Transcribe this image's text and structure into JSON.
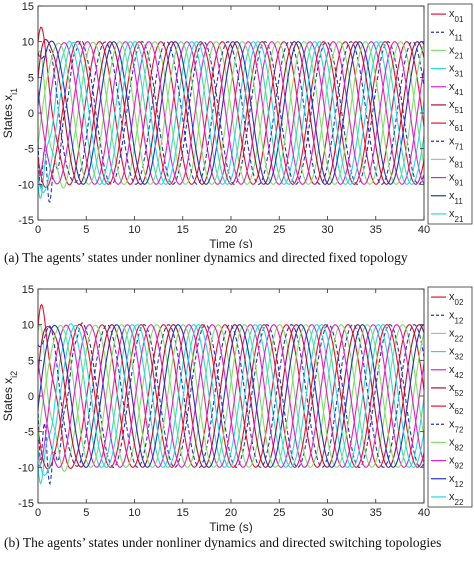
{
  "chart_data": [
    {
      "type": "line",
      "id": "a",
      "xlabel": "Time (s)",
      "ylabel_main": "States x",
      "ylabel_sub": "i1",
      "xlim": [
        0,
        40
      ],
      "ylim": [
        -15,
        15
      ],
      "xticks": [
        0,
        5,
        10,
        15,
        20,
        25,
        30,
        35,
        40
      ],
      "yticks": [
        -15,
        -10,
        -5,
        0,
        5,
        10,
        15
      ],
      "grid": false,
      "legend_position": "right",
      "caption": "(a) The agents’ states under nonliner dynamics and directed fixed topology",
      "series": [
        {
          "main": "x",
          "sub": "01",
          "color": "#e8112d",
          "dash": false,
          "amp": 10,
          "freq": 0.157,
          "phase": 1.57,
          "dev": [
            4.0,
            3.0,
            0.8
          ]
        },
        {
          "main": "x",
          "sub": "11",
          "color": "#2233bb",
          "dash": true,
          "amp": 10,
          "freq": 0.157,
          "phase": 3.5,
          "dev": [
            -6.0,
            6.5,
            0.7
          ]
        },
        {
          "main": "x",
          "sub": "21",
          "color": "#7ddf6a",
          "dash": false,
          "amp": 10,
          "freq": 0.157,
          "phase": 2.2,
          "dev": [
            3.0,
            4.0,
            0.6
          ]
        },
        {
          "main": "x",
          "sub": "31",
          "color": "#2ad7e0",
          "dash": false,
          "amp": 10,
          "freq": 0.157,
          "phase": 4.7,
          "dev": [
            -3.0,
            5.0,
            0.9
          ]
        },
        {
          "main": "x",
          "sub": "41",
          "color": "#e020c8",
          "dash": false,
          "amp": 10,
          "freq": 0.157,
          "phase": 5.2,
          "dev": [
            -2.0,
            3.0,
            1.0
          ]
        },
        {
          "main": "x",
          "sub": "51",
          "color": "#b01030",
          "dash": false,
          "amp": 10,
          "freq": 0.157,
          "phase": 0.5,
          "dev": [
            2.0,
            3.0,
            0.8
          ]
        },
        {
          "main": "x",
          "sub": "61",
          "color": "#e8112d",
          "dash": false,
          "amp": 10,
          "freq": 0.157,
          "phase": 3.8,
          "dev": [
            -1.0,
            2.5,
            0.7
          ]
        },
        {
          "main": "x",
          "sub": "71",
          "color": "#2233bb",
          "dash": true,
          "amp": 10,
          "freq": 0.157,
          "phase": 1.0,
          "dev": [
            -3.0,
            3.0,
            0.6
          ]
        },
        {
          "main": "x",
          "sub": "81",
          "color": "#7ddf6a",
          "dash": false,
          "amp": 10,
          "freq": 0.157,
          "phase": 5.8,
          "dev": [
            1.5,
            2.5,
            0.9
          ]
        },
        {
          "main": "x",
          "sub": "91",
          "color": "#e020c8",
          "dash": false,
          "amp": 10,
          "freq": 0.157,
          "phase": 2.8,
          "dev": [
            -1.0,
            3.0,
            1.0
          ]
        },
        {
          "main": "x",
          "sub": "11",
          "color": "#2233bb",
          "dash": false,
          "amp": 10,
          "freq": 0.157,
          "phase": 0.1,
          "dev": [
            1.0,
            2.0,
            0.7
          ]
        },
        {
          "main": "x",
          "sub": "21",
          "color": "#2ad7e0",
          "dash": false,
          "amp": 10,
          "freq": 0.157,
          "phase": 4.2,
          "dev": [
            -2.0,
            2.0,
            0.8
          ]
        }
      ]
    },
    {
      "type": "line",
      "id": "b",
      "xlabel": "Time (s)",
      "ylabel_main": "States x",
      "ylabel_sub": "i2",
      "xlim": [
        0,
        40
      ],
      "ylim": [
        -15,
        15
      ],
      "xticks": [
        0,
        5,
        10,
        15,
        20,
        25,
        30,
        35,
        40
      ],
      "yticks": [
        -15,
        -10,
        -5,
        0,
        5,
        10,
        15
      ],
      "grid": false,
      "legend_position": "right",
      "caption": "(b) The agents’ states under nonliner dynamics and directed switching topologies",
      "series": [
        {
          "main": "x",
          "sub": "02",
          "color": "#e8112d",
          "dash": false,
          "amp": 10,
          "freq": 0.157,
          "phase": 1.3,
          "dev": [
            4.0,
            3.5,
            0.8
          ]
        },
        {
          "main": "x",
          "sub": "12",
          "color": "#2233bb",
          "dash": true,
          "amp": 10,
          "freq": 0.157,
          "phase": 3.3,
          "dev": [
            -6.0,
            6.5,
            0.7
          ]
        },
        {
          "main": "x",
          "sub": "22",
          "color": "#7ddf6a",
          "dash": false,
          "amp": 10,
          "freq": 0.157,
          "phase": 2.0,
          "dev": [
            3.0,
            4.0,
            0.6
          ]
        },
        {
          "main": "x",
          "sub": "32",
          "color": "#2ad7e0",
          "dash": false,
          "amp": 10,
          "freq": 0.157,
          "phase": 4.5,
          "dev": [
            -3.0,
            5.0,
            0.9
          ]
        },
        {
          "main": "x",
          "sub": "42",
          "color": "#e020c8",
          "dash": false,
          "amp": 10,
          "freq": 0.157,
          "phase": 5.0,
          "dev": [
            -2.0,
            3.0,
            1.0
          ]
        },
        {
          "main": "x",
          "sub": "52",
          "color": "#b01030",
          "dash": false,
          "amp": 10,
          "freq": 0.157,
          "phase": 0.3,
          "dev": [
            2.0,
            3.0,
            0.8
          ]
        },
        {
          "main": "x",
          "sub": "62",
          "color": "#e8112d",
          "dash": false,
          "amp": 10,
          "freq": 0.157,
          "phase": 3.6,
          "dev": [
            -1.0,
            2.5,
            0.7
          ]
        },
        {
          "main": "x",
          "sub": "72",
          "color": "#2233bb",
          "dash": true,
          "amp": 10,
          "freq": 0.157,
          "phase": 0.8,
          "dev": [
            -3.0,
            3.0,
            0.6
          ]
        },
        {
          "main": "x",
          "sub": "82",
          "color": "#7ddf6a",
          "dash": false,
          "amp": 10,
          "freq": 0.157,
          "phase": 5.6,
          "dev": [
            1.5,
            2.5,
            0.9
          ]
        },
        {
          "main": "x",
          "sub": "92",
          "color": "#e020c8",
          "dash": false,
          "amp": 10,
          "freq": 0.157,
          "phase": 2.6,
          "dev": [
            -1.0,
            3.0,
            1.0
          ]
        },
        {
          "main": "x",
          "sub": "12",
          "color": "#2233bb",
          "dash": false,
          "amp": 10,
          "freq": 0.157,
          "phase": 6.1,
          "dev": [
            1.0,
            2.0,
            0.7
          ]
        },
        {
          "main": "x",
          "sub": "22",
          "color": "#2ad7e0",
          "dash": false,
          "amp": 10,
          "freq": 0.157,
          "phase": 4.0,
          "dev": [
            -2.0,
            2.0,
            0.8
          ]
        }
      ]
    }
  ]
}
